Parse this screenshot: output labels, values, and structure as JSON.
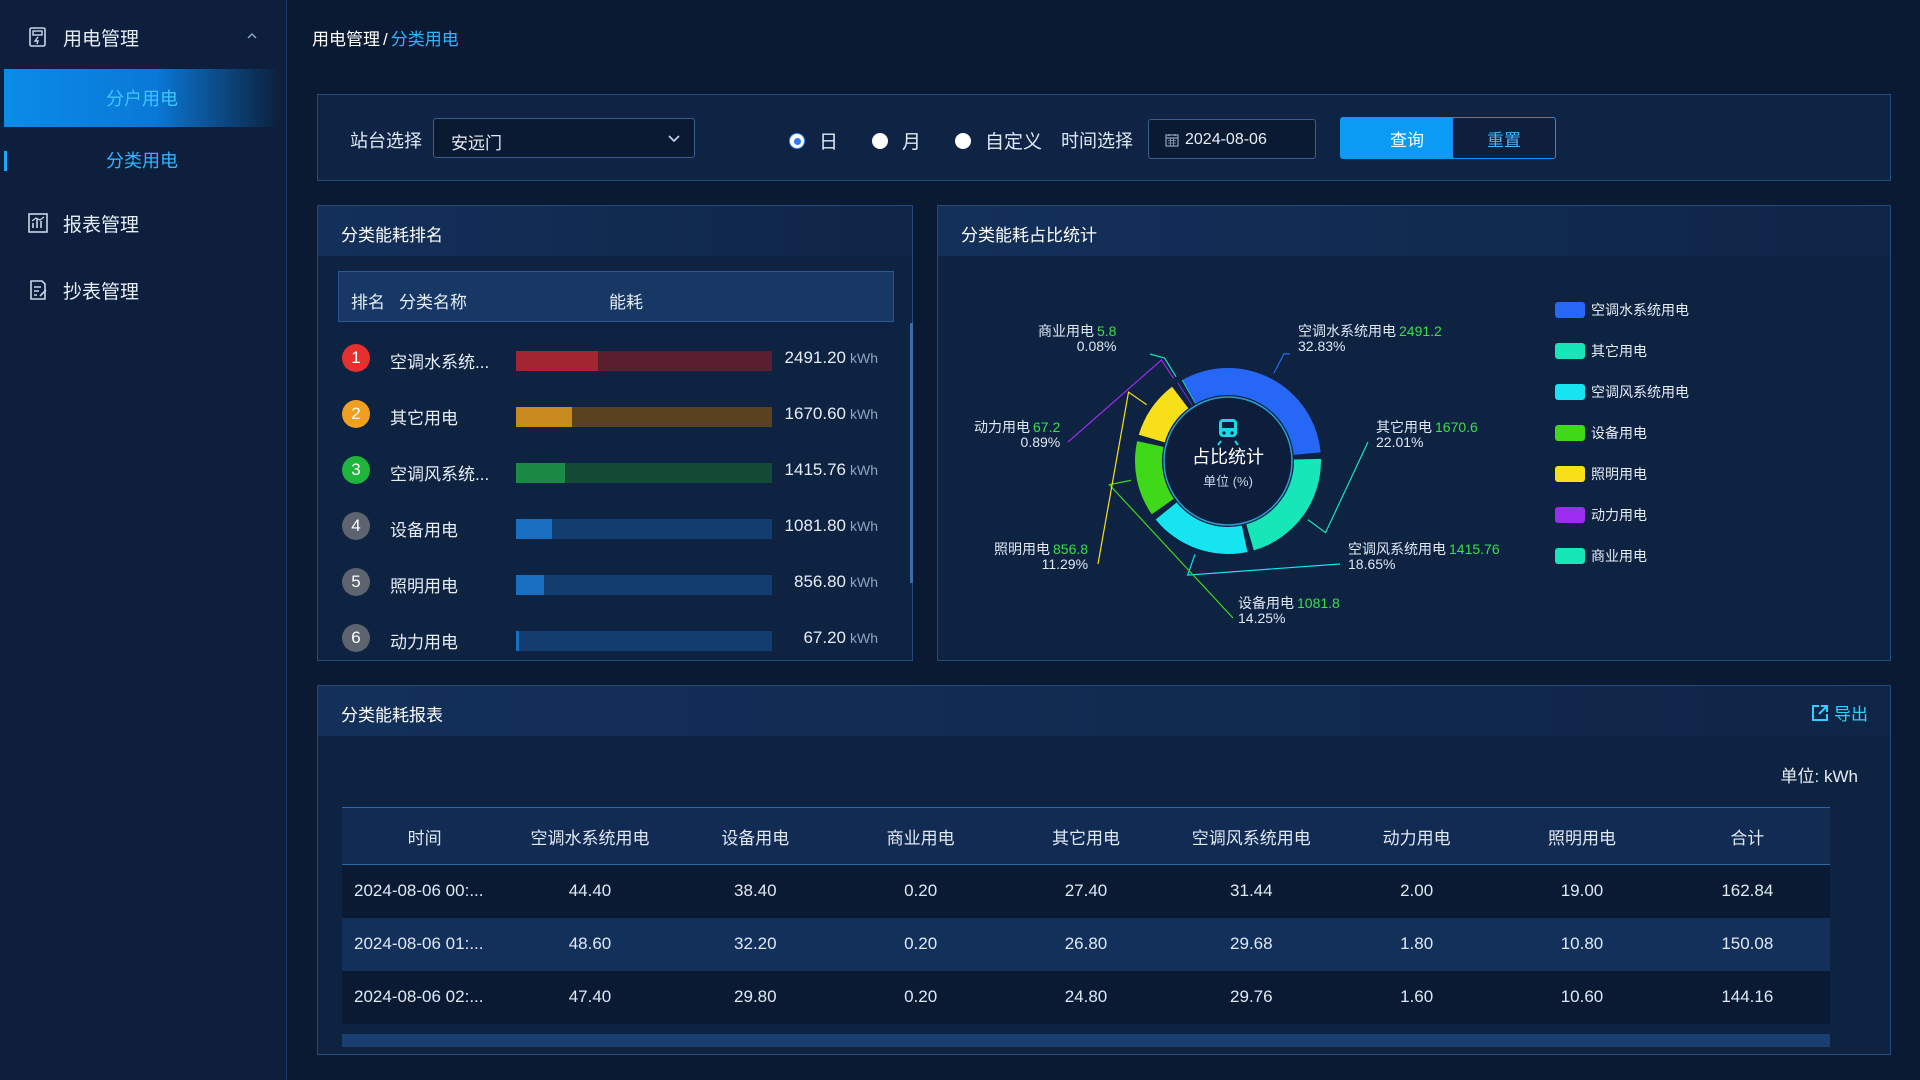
{
  "sidebar": {
    "groups": [
      {
        "label": "用电管理",
        "icon": "meter-icon"
      },
      {
        "label": "报表管理",
        "icon": "chart-report-icon"
      },
      {
        "label": "抄表管理",
        "icon": "document-edit-icon"
      }
    ],
    "submenu": [
      {
        "label": "分户用电",
        "active": true
      },
      {
        "label": "分类用电",
        "active": false
      }
    ]
  },
  "breadcrumb": {
    "parent": "用电管理",
    "separator": "/",
    "current": "分类用电"
  },
  "filter": {
    "station_label": "站台选择",
    "station_value": "安远门",
    "radios": [
      {
        "label": "日",
        "checked": true
      },
      {
        "label": "月",
        "checked": false
      },
      {
        "label": "自定义",
        "checked": false
      }
    ],
    "time_label": "时间选择",
    "date_value": "2024-08-06",
    "query_label": "查询",
    "reset_label": "重置"
  },
  "ranking": {
    "title": "分类能耗排名",
    "headers": {
      "rank": "排名",
      "name": "分类名称",
      "energy": "能耗"
    },
    "unit": "kWh",
    "rows": [
      {
        "rank": "1",
        "name": "空调水系统...",
        "value": "2491.20",
        "color": "#e63030",
        "track": "#5a1f2e",
        "fill": 0.32
      },
      {
        "rank": "2",
        "name": "其它用电",
        "value": "1670.60",
        "color": "#f0a020",
        "track": "#5a4220",
        "fill": 0.22
      },
      {
        "rank": "3",
        "name": "空调风系统...",
        "value": "1415.76",
        "color": "#1fb43c",
        "track": "#124a35",
        "fill": 0.19
      },
      {
        "rank": "4",
        "name": "设备用电",
        "value": "1081.80",
        "color": "#5d6470",
        "track": "#123d6e",
        "fill": 0.14
      },
      {
        "rank": "5",
        "name": "照明用电",
        "value": "856.80",
        "color": "#5d6470",
        "track": "#123d6e",
        "fill": 0.11
      },
      {
        "rank": "6",
        "name": "动力用电",
        "value": "67.20",
        "color": "#5d6470",
        "track": "#123d6e",
        "fill": 0.01
      }
    ],
    "fill_colors": [
      "#a42532",
      "#c88a1d",
      "#1a8a44",
      "#1a6fc0",
      "#1a6fc0",
      "#1a6fc0"
    ]
  },
  "ratio": {
    "title": "分类能耗占比统计",
    "center_title": "占比统计",
    "center_unit": "单位 (%)",
    "slices": [
      {
        "name": "空调水系统用电",
        "value": "2491.2",
        "percent": "32.83%",
        "color": "#2767f5"
      },
      {
        "name": "其它用电",
        "value": "1670.6",
        "percent": "22.01%",
        "color": "#17e6b8"
      },
      {
        "name": "空调风系统用电",
        "value": "1415.76",
        "percent": "18.65%",
        "color": "#16e4f0"
      },
      {
        "name": "设备用电",
        "value": "1081.8",
        "percent": "14.25%",
        "color": "#3fd91a"
      },
      {
        "name": "照明用电",
        "value": "856.8",
        "percent": "11.29%",
        "color": "#f7e01a"
      },
      {
        "name": "动力用电",
        "value": "67.2",
        "percent": "0.89%",
        "color": "#9d2bf0"
      },
      {
        "name": "商业用电",
        "value": "5.8",
        "percent": "0.08%",
        "color": "#17e6b8"
      }
    ]
  },
  "chart_data": {
    "type": "pie",
    "title": "分类能耗占比统计",
    "categories": [
      "空调水系统用电",
      "其它用电",
      "空调风系统用电",
      "设备用电",
      "照明用电",
      "动力用电",
      "商业用电"
    ],
    "values": [
      2491.2,
      1670.6,
      1415.76,
      1081.8,
      856.8,
      67.2,
      5.8
    ],
    "percent": [
      32.83,
      22.01,
      18.65,
      14.25,
      11.29,
      0.89,
      0.08
    ],
    "legend": "right"
  },
  "report": {
    "title": "分类能耗报表",
    "export_label": "导出",
    "unit_label": "单位:  kWh",
    "headers": [
      "时间",
      "空调水系统用电",
      "设备用电",
      "商业用电",
      "其它用电",
      "空调风系统用电",
      "动力用电",
      "照明用电",
      "合计"
    ],
    "rows": [
      [
        "2024-08-06 00:...",
        "44.40",
        "38.40",
        "0.20",
        "27.40",
        "31.44",
        "2.00",
        "19.00",
        "162.84"
      ],
      [
        "2024-08-06 01:...",
        "48.60",
        "32.20",
        "0.20",
        "26.80",
        "29.68",
        "1.80",
        "10.80",
        "150.08"
      ],
      [
        "2024-08-06 02:...",
        "47.40",
        "29.80",
        "0.20",
        "24.80",
        "29.76",
        "1.60",
        "10.60",
        "144.16"
      ]
    ]
  }
}
